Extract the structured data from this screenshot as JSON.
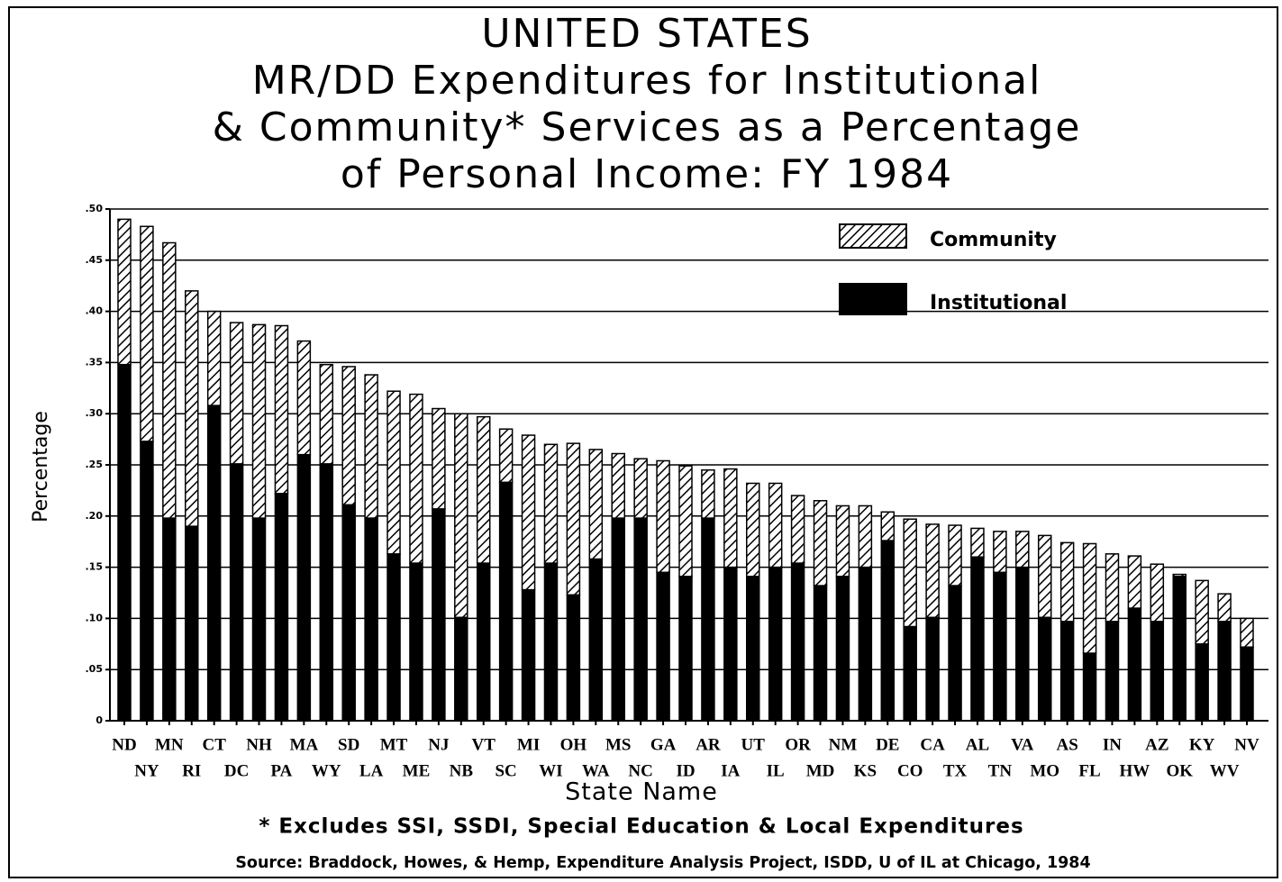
{
  "chart_data": {
    "type": "stacked_bar",
    "title": [
      "UNITED STATES",
      "MR/DD Expenditures for Institutional",
      "& Community* Services as a Percentage",
      "of Personal Income: FY 1984"
    ],
    "x_label": "State Name",
    "y_label": "Percentage",
    "footnote": "* Excludes SSI, SSDI, Special Education & Local Expenditures",
    "source": "Source: Braddock, Howes, & Hemp, Expenditure Analysis Project, ISDD, U of IL at Chicago, 1984",
    "categories": [
      "ND",
      "NY",
      "MN",
      "RI",
      "CT",
      "DC",
      "NH",
      "PA",
      "MA",
      "WY",
      "SD",
      "LA",
      "MT",
      "ME",
      "NJ",
      "NB",
      "VT",
      "SC",
      "MI",
      "WI",
      "OH",
      "WA",
      "MS",
      "NC",
      "GA",
      "ID",
      "AR",
      "IA",
      "UT",
      "IL",
      "OR",
      "MD",
      "NM",
      "KS",
      "DE",
      "CO",
      "CA",
      "TX",
      "AL",
      "TN",
      "VA",
      "MO",
      "AS",
      "FL",
      "IN",
      "HW",
      "AZ",
      "OK",
      "KY",
      "WV",
      "NV"
    ],
    "series": [
      {
        "name": "Institutional",
        "color": "#000000",
        "pattern": "solid",
        "values": [
          0.348,
          0.273,
          0.198,
          0.19,
          0.308,
          0.251,
          0.198,
          0.222,
          0.26,
          0.251,
          0.211,
          0.198,
          0.163,
          0.154,
          0.207,
          0.101,
          0.154,
          0.233,
          0.128,
          0.154,
          0.123,
          0.158,
          0.198,
          0.198,
          0.145,
          0.141,
          0.198,
          0.15,
          0.141,
          0.15,
          0.154,
          0.132,
          0.141,
          0.15,
          0.176,
          0.092,
          0.101,
          0.132,
          0.16,
          0.145,
          0.15,
          0.101,
          0.097,
          0.066,
          0.097,
          0.11,
          0.097,
          0.141,
          0.075,
          0.097,
          0.072
        ]
      },
      {
        "name": "Community",
        "color": "#000000",
        "pattern": "hatch",
        "values": [
          0.142,
          0.21,
          0.269,
          0.23,
          0.092,
          0.138,
          0.189,
          0.164,
          0.111,
          0.097,
          0.135,
          0.14,
          0.159,
          0.165,
          0.098,
          0.199,
          0.143,
          0.052,
          0.151,
          0.116,
          0.148,
          0.107,
          0.063,
          0.058,
          0.109,
          0.108,
          0.047,
          0.096,
          0.091,
          0.082,
          0.066,
          0.083,
          0.069,
          0.06,
          0.028,
          0.105,
          0.091,
          0.059,
          0.028,
          0.04,
          0.035,
          0.08,
          0.077,
          0.107,
          0.066,
          0.051,
          0.056,
          0.002,
          0.062,
          0.027,
          0.028
        ]
      }
    ],
    "ylim": [
      0,
      0.5
    ],
    "yticks": [
      0,
      {
        "value": 0.05,
        "label": ".05"
      },
      {
        "value": 0.1,
        "label": ".10"
      },
      {
        "value": 0.15,
        "label": ".15"
      },
      {
        "value": 0.2,
        "label": ".20"
      },
      {
        "value": 0.25,
        "label": ".25"
      },
      {
        "value": 0.3,
        "label": ".30"
      },
      {
        "value": 0.35,
        "label": ".35"
      },
      {
        "value": 0.4,
        "label": ".40"
      },
      {
        "value": 0.45,
        "label": ".45"
      },
      {
        "value": 0.5,
        "label": ".50"
      }
    ],
    "grid": true,
    "legend": "top-right"
  }
}
